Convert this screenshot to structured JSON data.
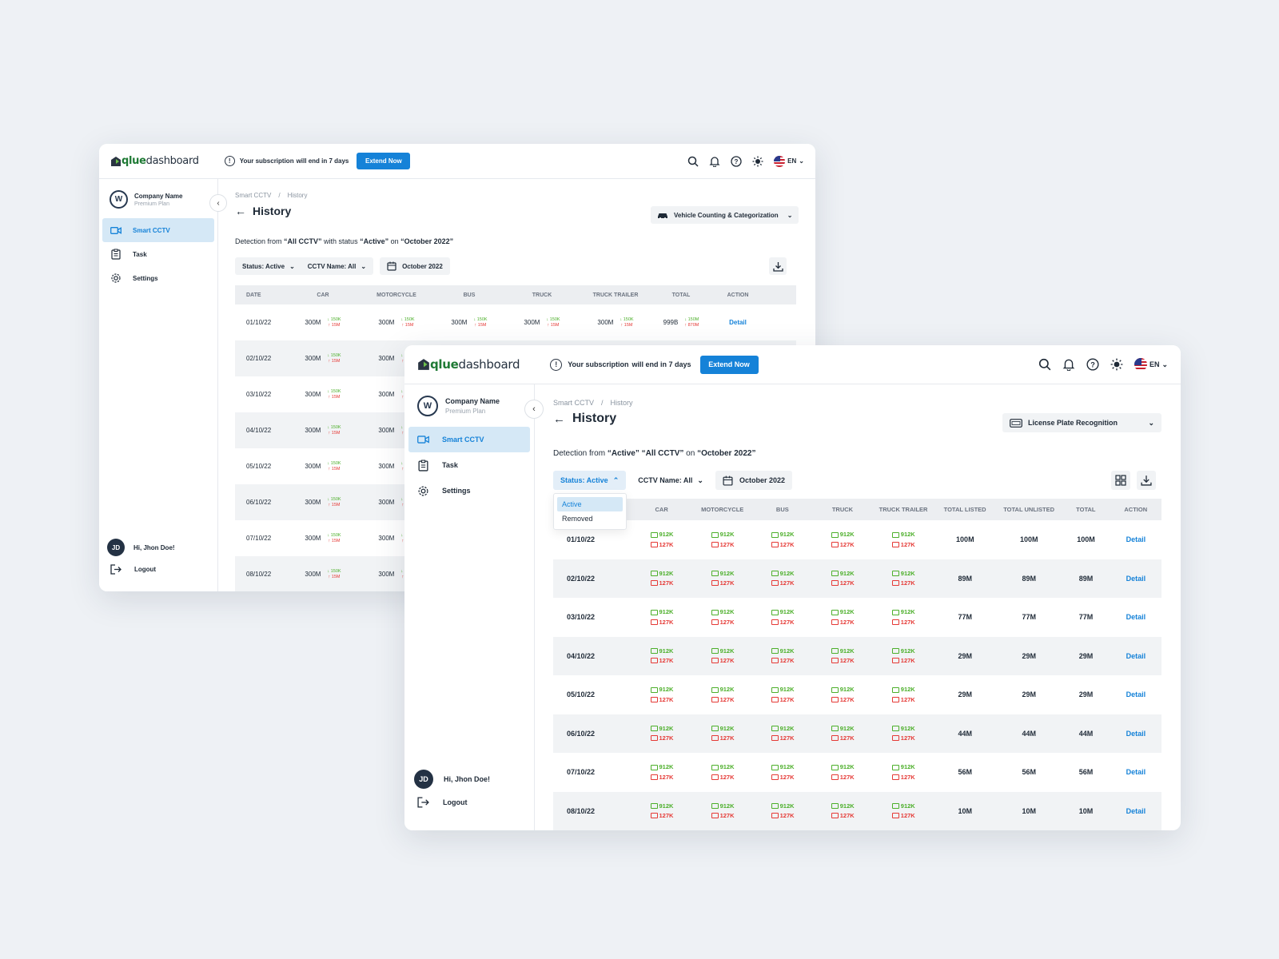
{
  "colors": {
    "accent": "#1582d8",
    "up": "#4caf2a",
    "down": "#e53935",
    "active_bg": "#d5e8f6"
  },
  "brand": {
    "logo_a": "qlue",
    "logo_b": "dashboard"
  },
  "subscription": {
    "text_a": "Your subscription",
    "text_b": "will end in 7 days",
    "button": "Extend Now"
  },
  "language": "EN",
  "sidebar": {
    "company_name": "Company Name",
    "plan": "Premium Plan",
    "items": [
      {
        "label": "Smart CCTV",
        "icon": "video-camera-icon"
      },
      {
        "label": "Task",
        "icon": "clipboard-icon"
      },
      {
        "label": "Settings",
        "icon": "gear-icon"
      }
    ],
    "user_initials": "JD",
    "greeting": "Hi, Jhon Doe!",
    "logout": "Logout"
  },
  "back_window": {
    "breadcrumb": [
      "Smart CCTV",
      "History"
    ],
    "title": "History",
    "selector": "Vehicle Counting & Categorization",
    "detection": {
      "pre": "Detection from ",
      "q1": "“All CCTV”",
      "mid1": " with status ",
      "q2": "“Active”",
      "mid2": " on ",
      "q3": "“October 2022”"
    },
    "filters": {
      "status": "Status: Active",
      "cctv": "CCTV Name: All",
      "date": "October 2022"
    },
    "columns": [
      "DATE",
      "CAR",
      "MOTORCYCLE",
      "BUS",
      "TRUCK",
      "TRUCK TRAILER",
      "TOTAL",
      "ACTION"
    ],
    "rows": [
      {
        "date": "01/10/22",
        "v": "300M",
        "up": "150K",
        "dn": "15M",
        "total": "999B",
        "tup": "150M",
        "tdn": "870M",
        "action": "Detail"
      },
      {
        "date": "02/10/22",
        "v": "300M",
        "up": "150K",
        "dn": "15M"
      },
      {
        "date": "03/10/22",
        "v": "300M",
        "up": "150K",
        "dn": "15M"
      },
      {
        "date": "04/10/22",
        "v": "300M",
        "up": "150K",
        "dn": "15M"
      },
      {
        "date": "05/10/22",
        "v": "300M",
        "up": "150K",
        "dn": "15M"
      },
      {
        "date": "06/10/22",
        "v": "300M",
        "up": "150K",
        "dn": "15M"
      },
      {
        "date": "07/10/22",
        "v": "300M",
        "up": "150K",
        "dn": "15M"
      },
      {
        "date": "08/10/22",
        "v": "300M",
        "up": "150K",
        "dn": "15M"
      }
    ]
  },
  "front_window": {
    "breadcrumb": [
      "Smart CCTV",
      "History"
    ],
    "title": "History",
    "selector": "License Plate Recognition",
    "detection": {
      "pre": "Detection from ",
      "q1": "“Active”",
      "mid1": " ",
      "q2": "“All CCTV”",
      "mid2": " on ",
      "q3": "“October 2022”"
    },
    "filters": {
      "status": "Status: Active",
      "cctv": "CCTV Name: All",
      "date": "October 2022"
    },
    "dropdown": [
      "Active",
      "Removed"
    ],
    "columns": [
      "CAR",
      "MOTORCYCLE",
      "BUS",
      "TRUCK",
      "TRUCK TRAILER",
      "TOTAL LISTED",
      "TOTAL UNLISTED",
      "TOTAL",
      "ACTION"
    ],
    "listed": "912K",
    "unlisted": "127K",
    "rows": [
      {
        "date": "01/10/22",
        "tl": "100M",
        "tu": "100M",
        "t": "100M",
        "action": "Detail"
      },
      {
        "date": "02/10/22",
        "tl": "89M",
        "tu": "89M",
        "t": "89M",
        "action": "Detail"
      },
      {
        "date": "03/10/22",
        "tl": "77M",
        "tu": "77M",
        "t": "77M",
        "action": "Detail"
      },
      {
        "date": "04/10/22",
        "tl": "29M",
        "tu": "29M",
        "t": "29M",
        "action": "Detail"
      },
      {
        "date": "05/10/22",
        "tl": "29M",
        "tu": "29M",
        "t": "29M",
        "action": "Detail"
      },
      {
        "date": "06/10/22",
        "tl": "44M",
        "tu": "44M",
        "t": "44M",
        "action": "Detail"
      },
      {
        "date": "07/10/22",
        "tl": "56M",
        "tu": "56M",
        "t": "56M",
        "action": "Detail"
      },
      {
        "date": "08/10/22",
        "tl": "10M",
        "tu": "10M",
        "t": "10M",
        "action": "Detail"
      }
    ]
  }
}
